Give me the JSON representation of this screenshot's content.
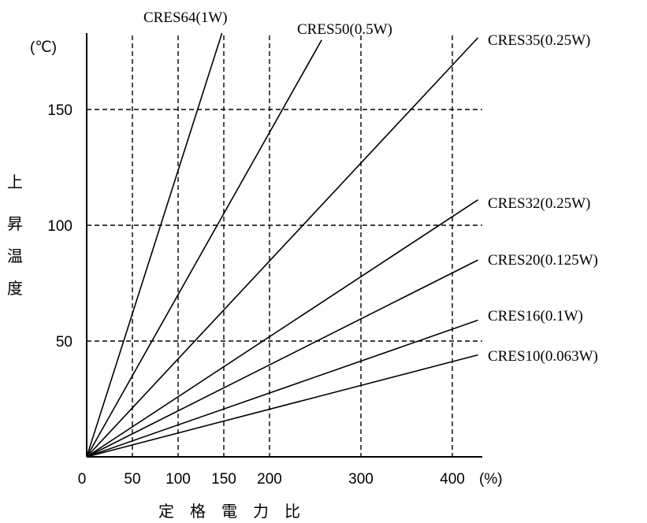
{
  "chart_data": {
    "type": "line",
    "xlabel": "定格電力比",
    "ylabel": "上昇温度",
    "x_unit": "(%)",
    "y_unit": "(℃)",
    "xlim": [
      0,
      430
    ],
    "ylim": [
      0,
      183
    ],
    "x_ticks": [
      0,
      50,
      100,
      150,
      200,
      300,
      400
    ],
    "y_ticks": [
      50,
      100,
      150
    ],
    "x_grid": [
      50,
      100,
      150,
      200,
      300,
      400
    ],
    "y_grid": [
      50,
      100,
      150
    ],
    "grid": "dashed",
    "series": [
      {
        "name": "CRES64(1W)",
        "x": [
          0,
          148
        ],
        "y": [
          0,
          183
        ]
      },
      {
        "name": "CRES50(0.5W)",
        "x": [
          0,
          257
        ],
        "y": [
          0,
          180
        ]
      },
      {
        "name": "CRES35(0.25W)",
        "x": [
          0,
          428
        ],
        "y": [
          0,
          181
        ]
      },
      {
        "name": "CRES32(0.25W)",
        "x": [
          0,
          428
        ],
        "y": [
          0,
          111
        ]
      },
      {
        "name": "CRES20(0.125W)",
        "x": [
          0,
          428
        ],
        "y": [
          0,
          85
        ]
      },
      {
        "name": "CRES16(0.1W)",
        "x": [
          0,
          428
        ],
        "y": [
          0,
          59
        ]
      },
      {
        "name": "CRES10(0.063W)",
        "x": [
          0,
          428
        ],
        "y": [
          0,
          44
        ]
      }
    ]
  }
}
